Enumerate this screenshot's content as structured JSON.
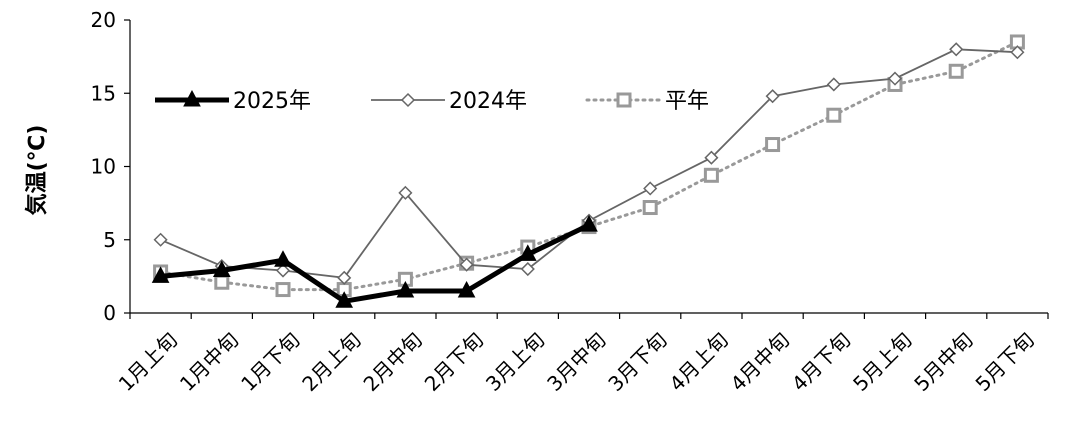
{
  "chart_data": {
    "type": "line",
    "title": "",
    "xlabel": "",
    "ylabel": "気温(℃)",
    "ylim": [
      0,
      20
    ],
    "yticks": [
      "0",
      "5",
      "10",
      "15",
      "20"
    ],
    "categories": [
      "1月上旬",
      "1月中旬",
      "1月下旬",
      "2月上旬",
      "2月中旬",
      "2月下旬",
      "3月上旬",
      "3月中旬",
      "3月下旬",
      "4月上旬",
      "4月中旬",
      "4月下旬",
      "5月上旬",
      "5月中旬",
      "5月下旬"
    ],
    "legend_position": "top-left",
    "grid": false,
    "series": [
      {
        "name": "2025年",
        "color": "#000000",
        "style": "solid-thick",
        "marker": "triangle",
        "values": [
          2.5,
          2.9,
          3.6,
          0.8,
          1.5,
          1.5,
          4.0,
          6.0,
          null,
          null,
          null,
          null,
          null,
          null,
          null
        ]
      },
      {
        "name": "2024年",
        "color": "#666666",
        "style": "solid-thin",
        "marker": "diamond",
        "values": [
          5.0,
          3.2,
          2.9,
          2.4,
          8.2,
          3.3,
          3.0,
          6.3,
          8.5,
          10.6,
          14.8,
          15.6,
          16.0,
          18.0,
          17.8
        ]
      },
      {
        "name": "平年",
        "color": "#999999",
        "style": "dotted",
        "marker": "square",
        "values": [
          2.8,
          2.1,
          1.6,
          1.6,
          2.3,
          3.4,
          4.5,
          5.9,
          7.2,
          9.4,
          11.5,
          13.5,
          15.6,
          16.5,
          18.5
        ]
      }
    ]
  }
}
